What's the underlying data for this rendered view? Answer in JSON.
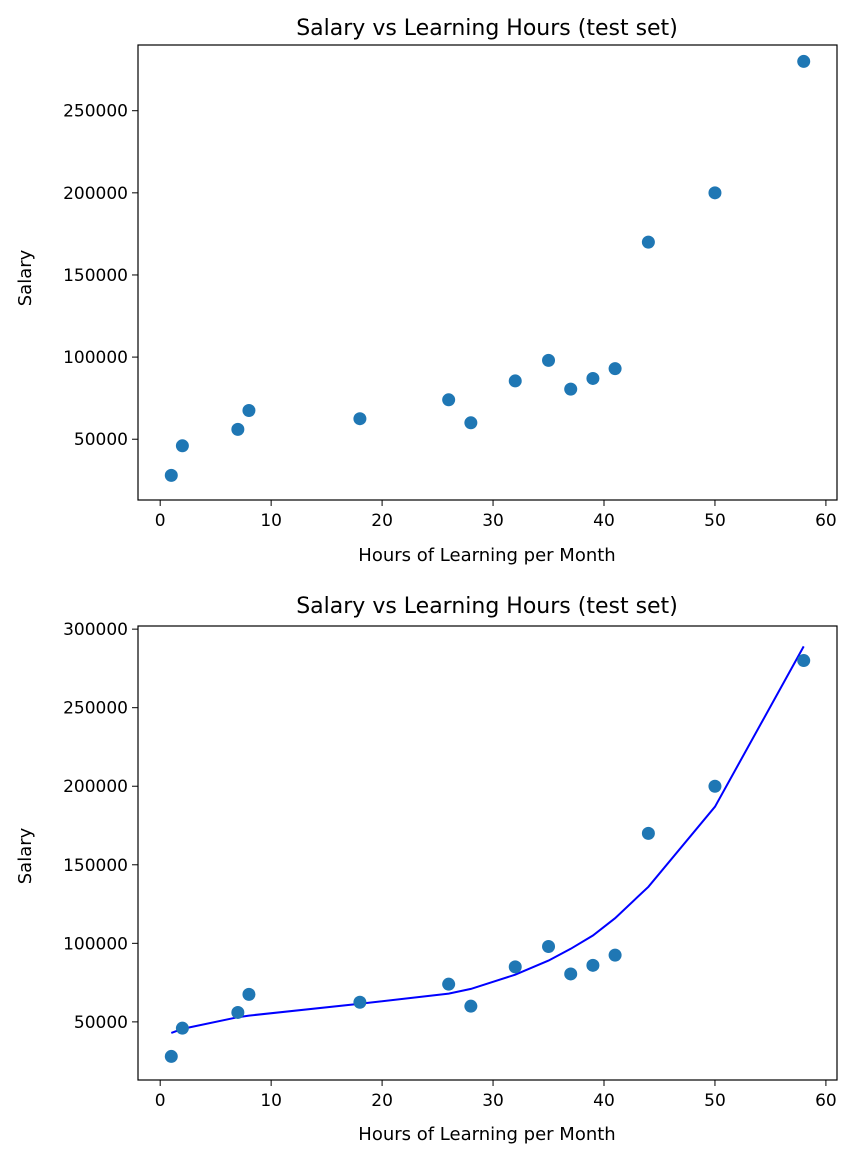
{
  "chart_data": [
    {
      "type": "scatter",
      "title": "Salary vs Learning Hours (test set)",
      "xlabel": "Hours of Learning per Month",
      "ylabel": "Salary",
      "xlim": [
        -2,
        61
      ],
      "ylim": [
        13000,
        290000
      ],
      "xticks": [
        0,
        10,
        20,
        30,
        40,
        50,
        60
      ],
      "yticks": [
        50000,
        100000,
        150000,
        200000,
        250000
      ],
      "grid": false,
      "series": [
        {
          "type": "scatter",
          "color": "#1f77b4",
          "points": [
            {
              "x": 1,
              "y": 28000
            },
            {
              "x": 2,
              "y": 46000
            },
            {
              "x": 7,
              "y": 56000
            },
            {
              "x": 8,
              "y": 67500
            },
            {
              "x": 18,
              "y": 62500
            },
            {
              "x": 26,
              "y": 74000
            },
            {
              "x": 28,
              "y": 60000
            },
            {
              "x": 32,
              "y": 85500
            },
            {
              "x": 35,
              "y": 98000
            },
            {
              "x": 37,
              "y": 80500
            },
            {
              "x": 39,
              "y": 87000
            },
            {
              "x": 41,
              "y": 93000
            },
            {
              "x": 44,
              "y": 170000
            },
            {
              "x": 50,
              "y": 200000
            },
            {
              "x": 58,
              "y": 280000
            }
          ]
        }
      ]
    },
    {
      "type": "scatter",
      "title": "Salary vs Learning Hours (test set)",
      "xlabel": "Hours of Learning per Month",
      "ylabel": "Salary",
      "xlim": [
        -2,
        61
      ],
      "ylim": [
        13000,
        302000
      ],
      "xticks": [
        0,
        10,
        20,
        30,
        40,
        50,
        60
      ],
      "yticks": [
        50000,
        100000,
        150000,
        200000,
        250000,
        300000
      ],
      "grid": false,
      "series": [
        {
          "type": "scatter",
          "color": "#1f77b4",
          "points": [
            {
              "x": 1,
              "y": 28000
            },
            {
              "x": 2,
              "y": 46000
            },
            {
              "x": 7,
              "y": 56000
            },
            {
              "x": 8,
              "y": 67500
            },
            {
              "x": 18,
              "y": 62500
            },
            {
              "x": 26,
              "y": 74000
            },
            {
              "x": 28,
              "y": 60000
            },
            {
              "x": 32,
              "y": 85000
            },
            {
              "x": 35,
              "y": 98000
            },
            {
              "x": 37,
              "y": 80500
            },
            {
              "x": 39,
              "y": 86000
            },
            {
              "x": 41,
              "y": 92500
            },
            {
              "x": 44,
              "y": 170000
            },
            {
              "x": 50,
              "y": 200000
            },
            {
              "x": 58,
              "y": 280000
            }
          ]
        },
        {
          "type": "line",
          "color": "#0000ff",
          "points": [
            {
              "x": 1,
              "y": 43000
            },
            {
              "x": 2,
              "y": 45500
            },
            {
              "x": 7,
              "y": 53000
            },
            {
              "x": 8,
              "y": 54000
            },
            {
              "x": 18,
              "y": 61500
            },
            {
              "x": 26,
              "y": 68000
            },
            {
              "x": 28,
              "y": 71000
            },
            {
              "x": 32,
              "y": 80000
            },
            {
              "x": 35,
              "y": 89000
            },
            {
              "x": 37,
              "y": 96500
            },
            {
              "x": 39,
              "y": 105000
            },
            {
              "x": 41,
              "y": 116000
            },
            {
              "x": 44,
              "y": 136000
            },
            {
              "x": 50,
              "y": 187000
            },
            {
              "x": 58,
              "y": 289000
            }
          ]
        }
      ]
    }
  ]
}
